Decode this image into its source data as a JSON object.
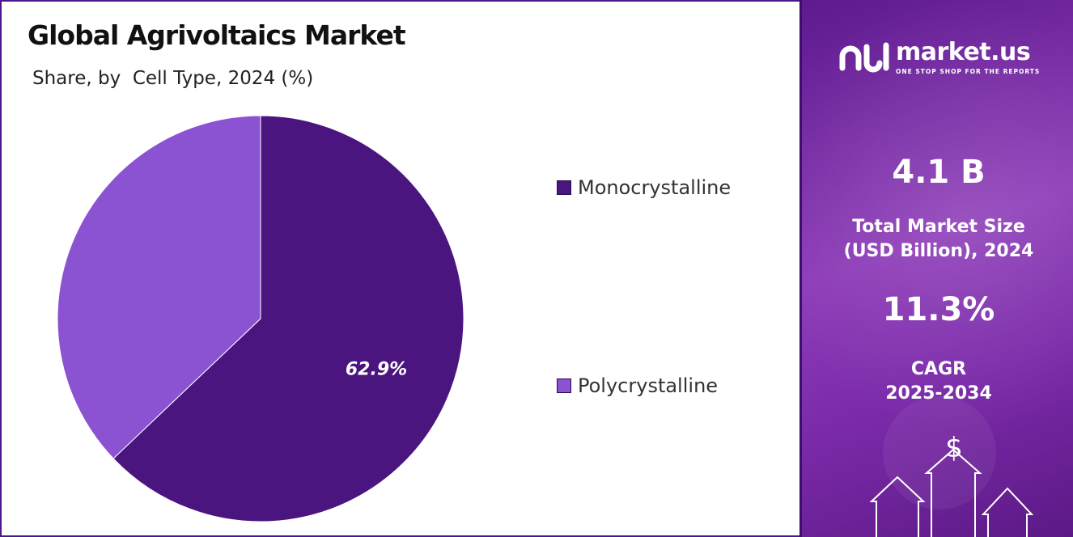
{
  "chart_data": {
    "type": "pie",
    "title": "Global Agrivoltaics Market",
    "subtitle": "Share, by  Cell Type, 2024 (%)",
    "slices": [
      {
        "label": "Monocrystalline",
        "value": 62.9,
        "color": "#4b1580",
        "data_label": "62.9%"
      },
      {
        "label": "Polycrystalline",
        "value": 37.1,
        "color": "#8b52d2",
        "data_label": ""
      }
    ],
    "legend_position": "right"
  },
  "brand": {
    "name": "market.us",
    "tagline": "ONE STOP SHOP FOR THE REPORTS",
    "logo_icon": "market-us-logo-icon"
  },
  "stats": {
    "market_size_value": "4.1 B",
    "market_size_label_line1": "Total Market Size",
    "market_size_label_line2": "(USD Billion), 2024",
    "cagr_value": "11.3%",
    "cagr_label_line1": "CAGR",
    "cagr_label_line2": "2025-2034"
  },
  "decoration": {
    "dollar_symbol": "$"
  }
}
